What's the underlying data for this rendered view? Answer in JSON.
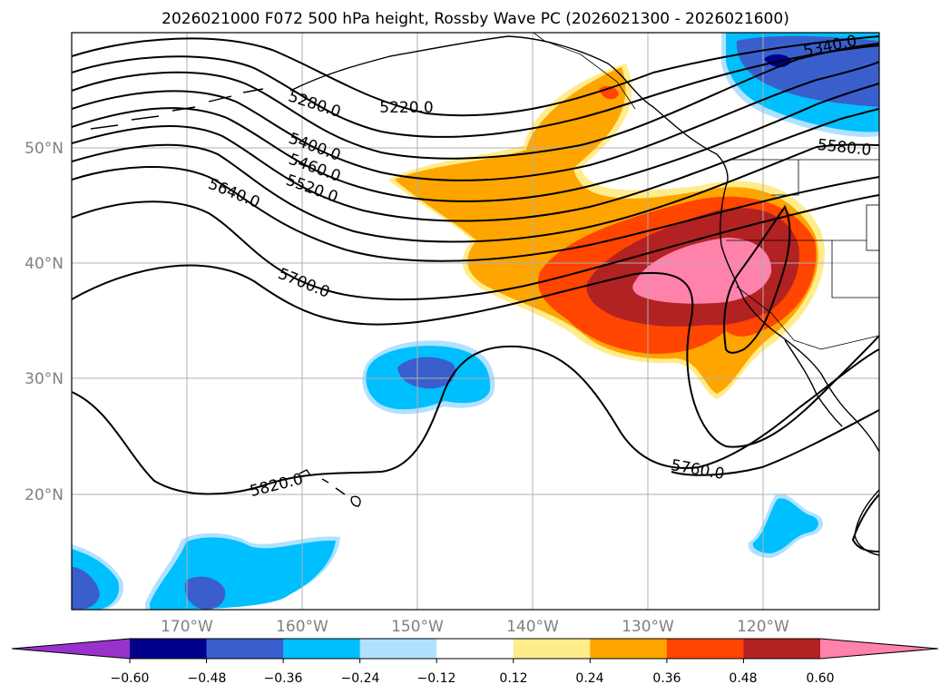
{
  "title": "2026021000 F072 500 hPa height, Rossby Wave PC (2026021300 - 2026021600)",
  "map": {
    "lon_labels": [
      "170°W",
      "160°W",
      "150°W",
      "140°W",
      "130°W",
      "120°W"
    ],
    "lat_labels": [
      "50°N",
      "40°N",
      "30°N",
      "20°N"
    ],
    "lon_range": [
      -180,
      -110
    ],
    "lat_range": [
      10,
      60
    ],
    "gridlines": true
  },
  "contours": {
    "labels": [
      "5220.0",
      "5280.0",
      "5340.0",
      "5400.0",
      "5460.0",
      "5520.0",
      "5580.0",
      "5640.0",
      "5700.0",
      "5760.0",
      "5820.0"
    ]
  },
  "colorbar": {
    "ticks": [
      "−0.60",
      "−0.48",
      "−0.36",
      "−0.24",
      "−0.12",
      "0.12",
      "0.24",
      "0.36",
      "0.48",
      "0.60"
    ],
    "colors": [
      "#9932cc",
      "#00008b",
      "#3a5fcd",
      "#00bfff",
      "#b0e2ff",
      "#ffffff",
      "#ffec8b",
      "#ffa500",
      "#ff4500",
      "#b22222",
      "#ff82ab"
    ],
    "extend": "both"
  }
}
